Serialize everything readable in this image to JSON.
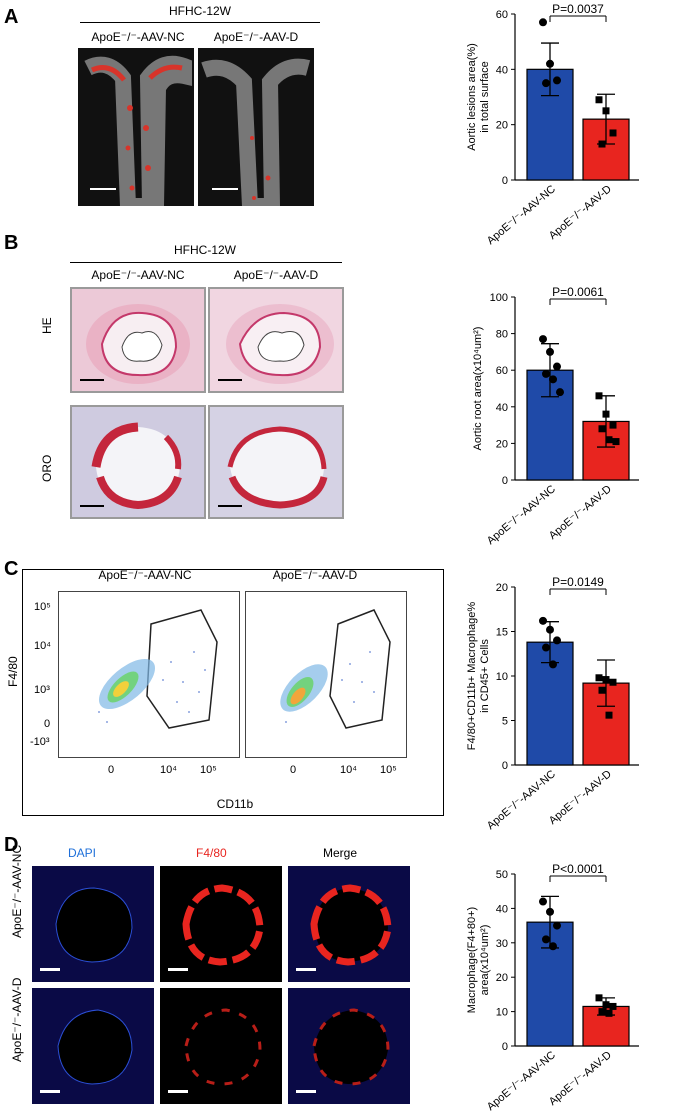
{
  "panels": {
    "A": {
      "letter": "A",
      "header": "HFHC-12W",
      "groups": [
        "ApoE⁻/⁻-AAV-NC",
        "ApoE⁻/⁻-AAV-D"
      ]
    },
    "B": {
      "letter": "B",
      "header": "HFHC-12W",
      "groups": [
        "ApoE⁻/⁻-AAV-NC",
        "ApoE⁻/⁻-AAV-D"
      ],
      "rows": [
        "HE",
        "ORO"
      ]
    },
    "C": {
      "letter": "C",
      "groups": [
        "ApoE⁻/⁻-AAV-NC",
        "ApoE⁻/⁻-AAV-D"
      ],
      "yaxis": "F4/80",
      "xaxis": "CD11b",
      "yticks": [
        "10⁵",
        "10⁴",
        "10³",
        "0",
        "-10³"
      ],
      "xticks": [
        "0",
        "10⁴",
        "10⁵"
      ]
    },
    "D": {
      "letter": "D",
      "channels": [
        "DAPI",
        "F4/80",
        "Merge"
      ],
      "rows": [
        "ApoE⁻/⁻-AAV-NC",
        "ApoE⁻/⁻-AAV-D"
      ]
    }
  },
  "colors": {
    "nc": "#1f4aa8",
    "d": "#e8251f",
    "dapi": "#1e6fd9",
    "f480": "#e8251f"
  },
  "chart_data": [
    {
      "type": "bar",
      "id": "A",
      "categories": [
        "ApoE⁻/⁻-AAV-NC",
        "ApoE⁻/⁻-AAV-D"
      ],
      "values": [
        40,
        22
      ],
      "errors": [
        9.5,
        9
      ],
      "points": [
        [
          57,
          42,
          36,
          35
        ],
        [
          29,
          25,
          17,
          13
        ]
      ],
      "ylabel": "Aortic lesions area(%)",
      "ylabel2": "in total surface",
      "ylim": [
        0,
        60
      ],
      "yticks": [
        0,
        20,
        40,
        60
      ],
      "pvalue": "P=0.0037"
    },
    {
      "type": "bar",
      "id": "B",
      "categories": [
        "ApoE⁻/⁻-AAV-NC",
        "ApoE⁻/⁻-AAV-D"
      ],
      "values": [
        60,
        32
      ],
      "errors": [
        14.5,
        14
      ],
      "points": [
        [
          77,
          70,
          62,
          58,
          55,
          48
        ],
        [
          46,
          36,
          30,
          28,
          22,
          21
        ]
      ],
      "ylabel": "Aortic root area(x10⁴um²)",
      "ylim": [
        0,
        100
      ],
      "yticks": [
        0,
        20,
        40,
        60,
        80,
        100
      ],
      "pvalue": "P=0.0061"
    },
    {
      "type": "bar",
      "id": "C",
      "categories": [
        "ApoE⁻/⁻-AAV-NC",
        "ApoE⁻/⁻-AAV-D"
      ],
      "values": [
        13.8,
        9.2
      ],
      "errors": [
        2.3,
        2.6
      ],
      "points": [
        [
          16.2,
          15.2,
          14,
          13.2,
          11.3
        ],
        [
          9.8,
          9.6,
          9.3,
          8.4,
          5.6
        ]
      ],
      "ylabel": "F4/80+CD11b+ Macrophage%",
      "ylabel2": "in CD45+ Cells",
      "ylim": [
        0,
        20
      ],
      "yticks": [
        0,
        5,
        10,
        15,
        20
      ],
      "pvalue": "P=0.0149"
    },
    {
      "type": "bar",
      "id": "D",
      "categories": [
        "ApoE⁻/⁻-AAV-NC",
        "ApoE⁻/⁻-AAV-D"
      ],
      "values": [
        36,
        11.5
      ],
      "errors": [
        7.5,
        2.5
      ],
      "points": [
        [
          42,
          39,
          35,
          31,
          29
        ],
        [
          14,
          12,
          11.5,
          10,
          9.5
        ]
      ],
      "ylabel": "Macrophage(F4+80+)",
      "ylabel2": "area(x10⁴um²)",
      "ylim": [
        0,
        50
      ],
      "yticks": [
        0,
        10,
        20,
        30,
        40,
        50
      ],
      "pvalue": "P<0.0001"
    }
  ]
}
